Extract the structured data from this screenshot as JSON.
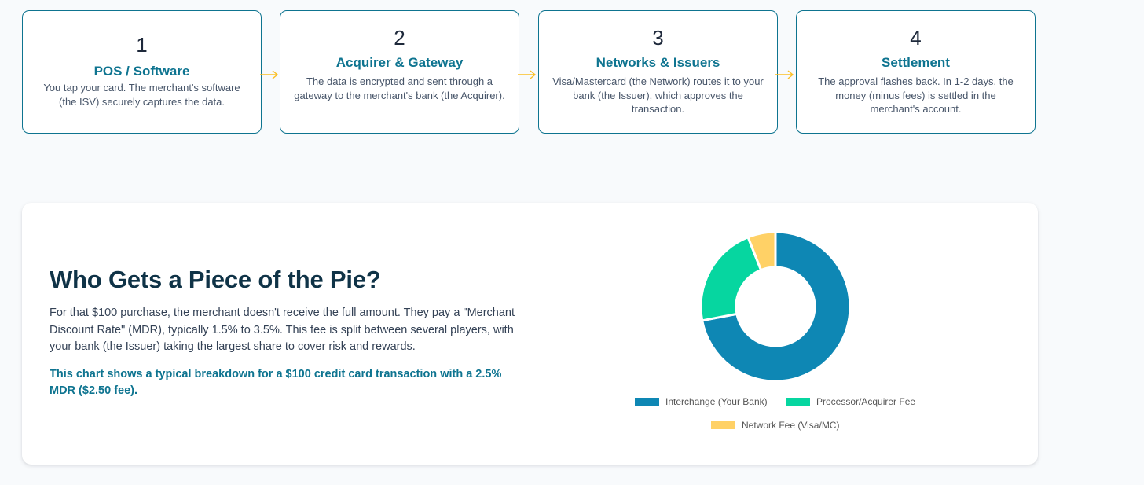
{
  "steps": [
    {
      "number": "1",
      "title": "POS / Software",
      "description": "You tap your card. The merchant's software (the ISV) securely captures the data."
    },
    {
      "number": "2",
      "title": "Acquirer & Gateway",
      "description": "The data is encrypted and sent through a gateway to the merchant's bank (the Acquirer)."
    },
    {
      "number": "3",
      "title": "Networks & Issuers",
      "description": "Visa/Mastercard (the Network) routes it to your bank (the Issuer), which approves the transaction."
    },
    {
      "number": "4",
      "title": "Settlement",
      "description": "The approval flashes back. In 1-2 days, the money (minus fees) is settled in the merchant's account."
    }
  ],
  "pie_section": {
    "heading": "Who Gets a Piece of the Pie?",
    "body": "For that $100 purchase, the merchant doesn't receive the full amount. They pay a \"Merchant Discount Rate\" (MDR), typically 1.5% to 3.5%. This fee is split between several players, with your bank (the Issuer) taking the largest share to cover risk and rewards.",
    "highlight": "This chart shows a typical breakdown for a $100 credit card transaction with a 2.5% MDR ($2.50 fee)."
  },
  "colors": {
    "accent": "#0e7490",
    "arrow": "#fbbf24"
  },
  "chart_data": {
    "type": "pie",
    "variant": "doughnut",
    "categories": [
      "Interchange (Your Bank)",
      "Processor/Acquirer Fee",
      "Network Fee (Visa/MC)"
    ],
    "values": [
      1.8,
      0.55,
      0.15
    ],
    "colors": [
      "#0e87b4",
      "#06d6a0",
      "#ffd166"
    ],
    "legend_position": "bottom"
  }
}
